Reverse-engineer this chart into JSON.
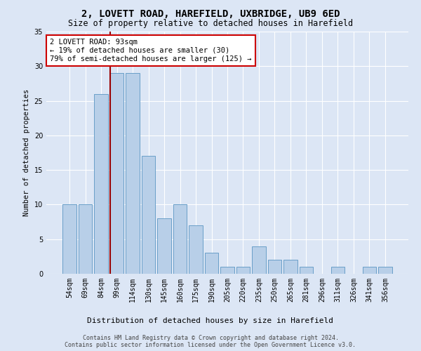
{
  "title1": "2, LOVETT ROAD, HAREFIELD, UXBRIDGE, UB9 6ED",
  "title2": "Size of property relative to detached houses in Harefield",
  "xlabel": "Distribution of detached houses by size in Harefield",
  "ylabel": "Number of detached properties",
  "categories": [
    "54sqm",
    "69sqm",
    "84sqm",
    "99sqm",
    "114sqm",
    "130sqm",
    "145sqm",
    "160sqm",
    "175sqm",
    "190sqm",
    "205sqm",
    "220sqm",
    "235sqm",
    "250sqm",
    "265sqm",
    "281sqm",
    "296sqm",
    "311sqm",
    "326sqm",
    "341sqm",
    "356sqm"
  ],
  "values": [
    10,
    10,
    26,
    29,
    29,
    17,
    8,
    10,
    7,
    3,
    1,
    1,
    4,
    2,
    2,
    1,
    0,
    1,
    0,
    1,
    1
  ],
  "bar_color": "#b8cfe8",
  "bar_edge_color": "#6a9fc8",
  "background_color": "#dce6f5",
  "grid_color": "#ffffff",
  "marker_line_color": "#990000",
  "annotation_text": "2 LOVETT ROAD: 93sqm\n← 19% of detached houses are smaller (30)\n79% of semi-detached houses are larger (125) →",
  "annotation_box_color": "#ffffff",
  "annotation_box_edge": "#cc0000",
  "footer1": "Contains HM Land Registry data © Crown copyright and database right 2024.",
  "footer2": "Contains public sector information licensed under the Open Government Licence v3.0.",
  "ylim": [
    0,
    35
  ],
  "yticks": [
    0,
    5,
    10,
    15,
    20,
    25,
    30,
    35
  ]
}
